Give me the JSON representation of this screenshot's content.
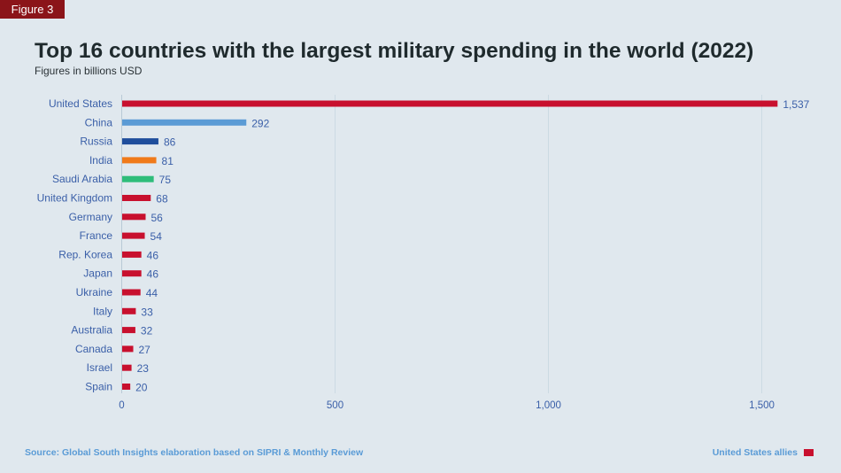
{
  "figure_tag": "Figure 3",
  "footer": {
    "source": "Source: Global South Insights elaboration based on SIPRI & Monthly Review",
    "legend_label": "United States allies",
    "legend_color": "#c8102e"
  },
  "chart_data": {
    "type": "bar",
    "orientation": "horizontal",
    "title": "Top 16 countries with the largest military spending in the world (2022)",
    "subtitle": "Figures in billions USD",
    "xlabel": "",
    "ylabel": "",
    "xlim": [
      0,
      1650
    ],
    "x_ticks": [
      0,
      500,
      1000,
      1500
    ],
    "x_tick_labels": [
      "0",
      "500",
      "1,000",
      "1,500"
    ],
    "grid": true,
    "legend_position": "bottom-right",
    "categories": [
      "United States",
      "China",
      "Russia",
      "India",
      "Saudi Arabia",
      "United Kingdom",
      "Germany",
      "France",
      "Rep. Korea",
      "Japan",
      "Ukraine",
      "Italy",
      "Australia",
      "Canada",
      "Israel",
      "Spain"
    ],
    "values": [
      1537,
      292,
      86,
      81,
      75,
      68,
      56,
      54,
      46,
      46,
      44,
      33,
      32,
      27,
      23,
      20
    ],
    "value_labels": [
      "1,537",
      "292",
      "86",
      "81",
      "75",
      "68",
      "56",
      "54",
      "46",
      "46",
      "44",
      "33",
      "32",
      "27",
      "23",
      "20"
    ],
    "colors": [
      "#c8102e",
      "#5b9bd5",
      "#1f4e9c",
      "#f07a1a",
      "#2ebd7a",
      "#c8102e",
      "#c8102e",
      "#c8102e",
      "#c8102e",
      "#c8102e",
      "#c8102e",
      "#c8102e",
      "#c8102e",
      "#c8102e",
      "#c8102e",
      "#c8102e"
    ]
  }
}
